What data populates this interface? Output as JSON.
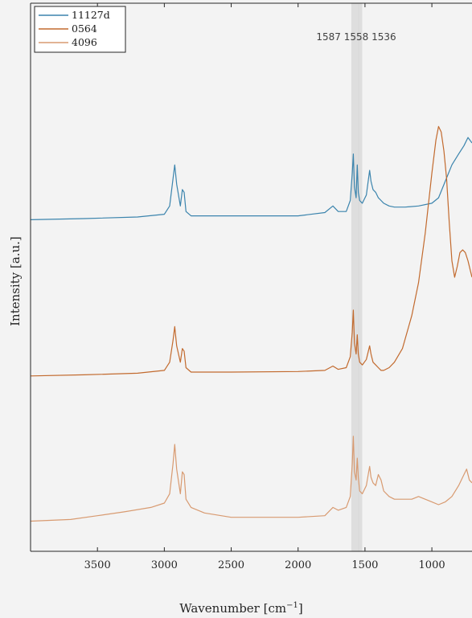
{
  "chart_data": {
    "type": "line",
    "xlabel": "Wavenumber",
    "xlabel_unit": "[cm",
    "xlabel_unit_exp": "−1",
    "xlabel_unit_close": "]",
    "ylabel": "Intensity [a.u.]",
    "x_reversed": true,
    "xlim": [
      4000,
      700
    ],
    "ylim": [
      0,
      10
    ],
    "x_ticks": [
      3500,
      3000,
      2500,
      2000,
      1500,
      1000
    ],
    "x_tick_labels": [
      "3500",
      "3000",
      "2500",
      "2000",
      "1500",
      "1000"
    ],
    "y_ticks_visible": false,
    "grid": false,
    "legend_position": "top-left",
    "annotation": {
      "text": "1587 1558 1536",
      "band_positions": [
        1587,
        1558,
        1536
      ],
      "band_color": "#d9d9d9"
    },
    "series": [
      {
        "name": "11127d",
        "color": "#3b84ad",
        "x": [
          4000,
          3600,
          3200,
          3000,
          2960,
          2935,
          2922,
          2908,
          2880,
          2865,
          2852,
          2838,
          2800,
          2500,
          2000,
          1800,
          1740,
          1700,
          1640,
          1610,
          1595,
          1587,
          1579,
          1566,
          1558,
          1550,
          1540,
          1520,
          1490,
          1465,
          1455,
          1440,
          1420,
          1400,
          1380,
          1360,
          1320,
          1280,
          1200,
          1100,
          1000,
          950,
          900,
          850,
          800,
          760,
          730,
          700
        ],
        "y": [
          6.05,
          6.07,
          6.1,
          6.15,
          6.3,
          6.8,
          7.05,
          6.7,
          6.3,
          6.6,
          6.55,
          6.2,
          6.12,
          6.12,
          6.12,
          6.18,
          6.3,
          6.2,
          6.2,
          6.4,
          6.9,
          7.25,
          6.65,
          6.45,
          7.05,
          6.55,
          6.4,
          6.35,
          6.5,
          6.95,
          6.75,
          6.6,
          6.55,
          6.45,
          6.4,
          6.35,
          6.3,
          6.28,
          6.28,
          6.3,
          6.35,
          6.45,
          6.75,
          7.05,
          7.25,
          7.4,
          7.55,
          7.45
        ]
      },
      {
        "name": "0564",
        "color": "#c26a2e",
        "x": [
          4000,
          3600,
          3200,
          3000,
          2960,
          2935,
          2922,
          2908,
          2880,
          2865,
          2852,
          2838,
          2800,
          2500,
          2000,
          1800,
          1740,
          1700,
          1640,
          1610,
          1595,
          1587,
          1579,
          1566,
          1558,
          1550,
          1540,
          1520,
          1490,
          1465,
          1455,
          1440,
          1420,
          1400,
          1380,
          1360,
          1320,
          1280,
          1220,
          1150,
          1100,
          1050,
          1000,
          970,
          950,
          930,
          910,
          890,
          870,
          850,
          830,
          810,
          790,
          770,
          750,
          730,
          710,
          700
        ],
        "y": [
          3.2,
          3.22,
          3.25,
          3.3,
          3.45,
          3.85,
          4.1,
          3.75,
          3.45,
          3.7,
          3.65,
          3.35,
          3.27,
          3.27,
          3.28,
          3.3,
          3.38,
          3.32,
          3.35,
          3.55,
          4.0,
          4.4,
          3.8,
          3.6,
          3.95,
          3.6,
          3.45,
          3.4,
          3.5,
          3.75,
          3.6,
          3.45,
          3.4,
          3.35,
          3.3,
          3.3,
          3.35,
          3.45,
          3.7,
          4.3,
          4.9,
          5.8,
          6.9,
          7.5,
          7.75,
          7.65,
          7.3,
          6.8,
          6.0,
          5.3,
          5.0,
          5.2,
          5.45,
          5.5,
          5.45,
          5.3,
          5.1,
          5.0
        ]
      },
      {
        "name": "4096",
        "color": "#d89a70",
        "x": [
          4000,
          3700,
          3500,
          3300,
          3100,
          3000,
          2960,
          2935,
          2922,
          2908,
          2880,
          2865,
          2852,
          2838,
          2800,
          2700,
          2500,
          2000,
          1800,
          1740,
          1700,
          1640,
          1610,
          1595,
          1587,
          1579,
          1566,
          1558,
          1550,
          1540,
          1520,
          1490,
          1465,
          1455,
          1440,
          1420,
          1400,
          1380,
          1360,
          1320,
          1280,
          1200,
          1150,
          1100,
          1050,
          1000,
          950,
          900,
          850,
          800,
          760,
          740,
          720,
          700
        ],
        "y": [
          0.55,
          0.58,
          0.65,
          0.72,
          0.8,
          0.88,
          1.05,
          1.6,
          1.95,
          1.5,
          1.05,
          1.45,
          1.4,
          0.95,
          0.8,
          0.7,
          0.62,
          0.62,
          0.65,
          0.8,
          0.75,
          0.8,
          1.0,
          1.6,
          2.1,
          1.45,
          1.3,
          1.7,
          1.35,
          1.1,
          1.05,
          1.2,
          1.55,
          1.35,
          1.25,
          1.2,
          1.4,
          1.3,
          1.1,
          1.0,
          0.95,
          0.95,
          0.95,
          1.0,
          0.95,
          0.9,
          0.85,
          0.9,
          1.0,
          1.2,
          1.4,
          1.5,
          1.3,
          1.25
        ]
      }
    ]
  }
}
